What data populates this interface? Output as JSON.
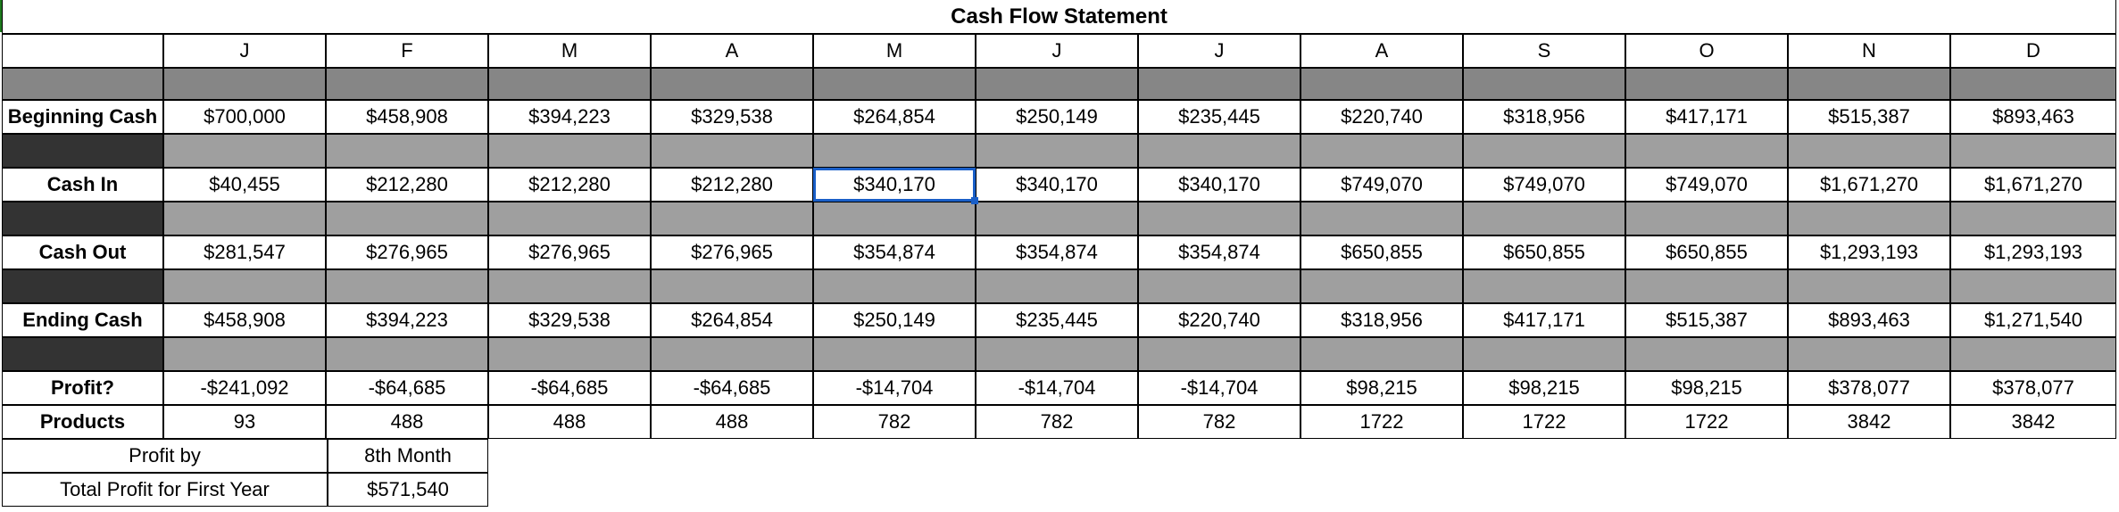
{
  "sheet": {
    "title": "Cash Flow Statement",
    "months": [
      "J",
      "F",
      "M",
      "A",
      "M",
      "J",
      "J",
      "A",
      "S",
      "O",
      "N",
      "D"
    ],
    "colors": {
      "label_fill": "#333333",
      "month_fill": "#9f9f9f",
      "header_fill": "#868686",
      "selection": "#1a5fc8"
    },
    "rows": [
      {
        "label": "Beginning Cash",
        "values": [
          "$700,000",
          "$458,908",
          "$394,223",
          "$329,538",
          "$264,854",
          "$250,149",
          "$235,445",
          "$220,740",
          "$318,956",
          "$417,171",
          "$515,387",
          "$893,463"
        ]
      },
      {
        "label": "Cash In",
        "values": [
          "$40,455",
          "$212,280",
          "$212,280",
          "$212,280",
          "$340,170",
          "$340,170",
          "$340,170",
          "$749,070",
          "$749,070",
          "$749,070",
          "$1,671,270",
          "$1,671,270"
        ]
      },
      {
        "label": "Cash Out",
        "values": [
          "$281,547",
          "$276,965",
          "$276,965",
          "$276,965",
          "$354,874",
          "$354,874",
          "$354,874",
          "$650,855",
          "$650,855",
          "$650,855",
          "$1,293,193",
          "$1,293,193"
        ]
      },
      {
        "label": "Ending Cash",
        "values": [
          "$458,908",
          "$394,223",
          "$329,538",
          "$264,854",
          "$250,149",
          "$235,445",
          "$220,740",
          "$318,956",
          "$417,171",
          "$515,387",
          "$893,463",
          "$1,271,540"
        ]
      },
      {
        "label": "Profit?",
        "values": [
          "-$241,092",
          "-$64,685",
          "-$64,685",
          "-$64,685",
          "-$14,704",
          "-$14,704",
          "-$14,704",
          "$98,215",
          "$98,215",
          "$98,215",
          "$378,077",
          "$378,077"
        ]
      },
      {
        "label": "Products",
        "values": [
          "93",
          "488",
          "488",
          "488",
          "782",
          "782",
          "782",
          "1722",
          "1722",
          "1722",
          "3842",
          "3842"
        ]
      }
    ],
    "summary": [
      {
        "label": "Profit by",
        "value": "8th Month"
      },
      {
        "label": "Total Profit for First Year",
        "value": "$571,540"
      }
    ],
    "selected_cell": "Cash In / M (5th month)"
  }
}
